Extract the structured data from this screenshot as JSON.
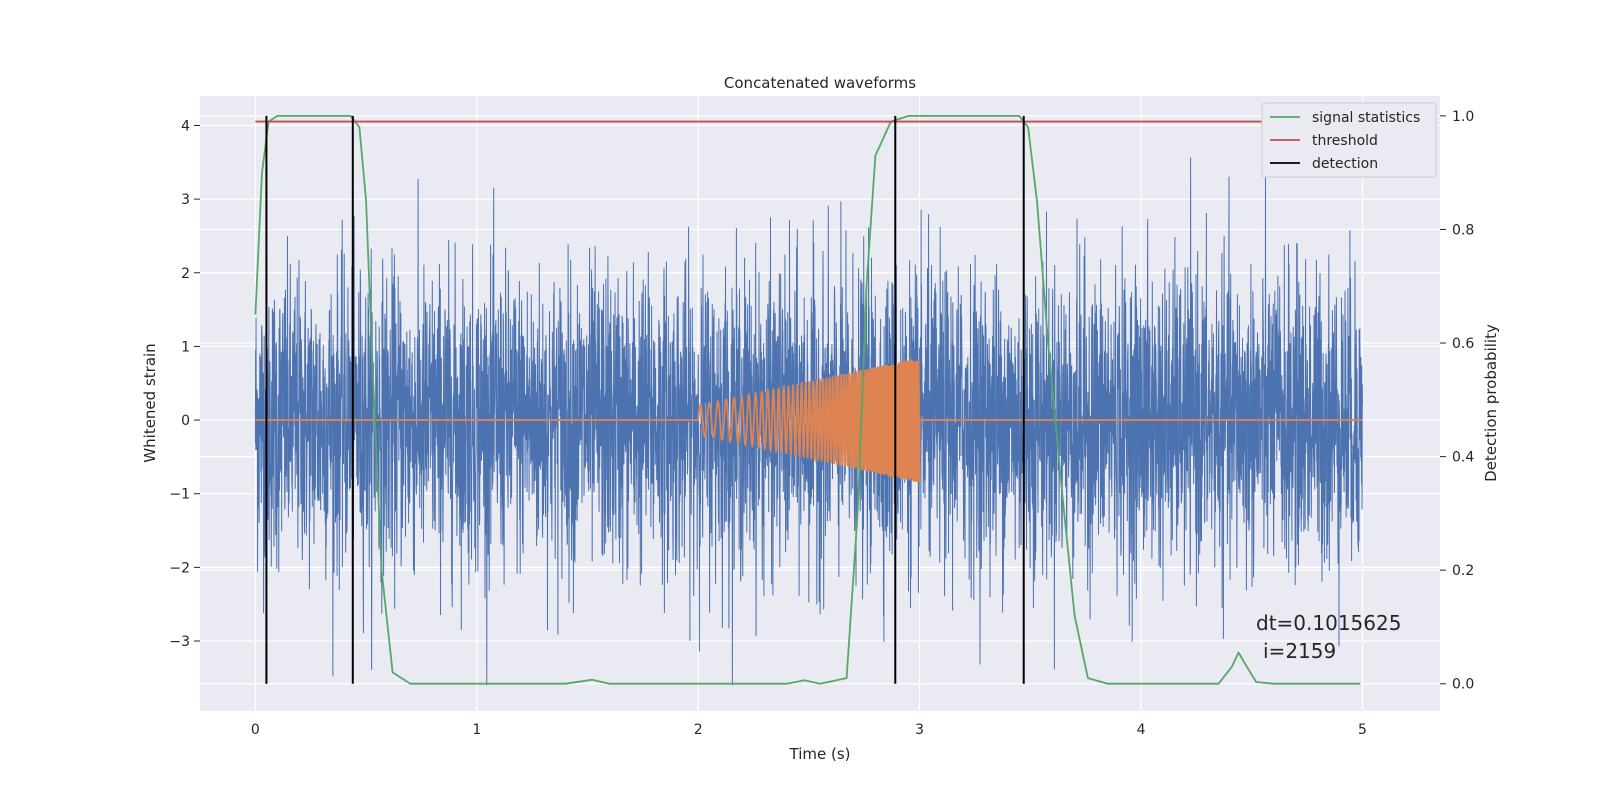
{
  "chart_data": {
    "type": "line",
    "title": "Concatenated waveforms",
    "xlabel": "Time (s)",
    "ylabel": "Whitened strain",
    "y2label": "Detection probability",
    "xlim": [
      -0.25,
      5.35
    ],
    "ylim": [
      -3.95,
      4.4
    ],
    "y2lim": [
      -0.048,
      1.035
    ],
    "x_ticks": [
      0,
      1,
      2,
      3,
      4,
      5
    ],
    "y_ticks": [
      -3,
      -2,
      -1,
      0,
      1,
      2,
      3,
      4
    ],
    "y2_ticks": [
      0.0,
      0.2,
      0.4,
      0.6,
      0.8,
      1.0
    ],
    "y2_tick_labels": [
      "0.0",
      "0.2",
      "0.4",
      "0.6",
      "0.8",
      "1.0"
    ],
    "grid": true,
    "legend_position": "top-right",
    "colors": {
      "strain": "#4c72b0",
      "injected": "#dd8452",
      "signal_statistics": "#55a868",
      "threshold": "#c44e52",
      "detection": "#000000",
      "background": "#eaeaf2",
      "grid": "#ffffff"
    },
    "series": [
      {
        "name": "",
        "key": "strain",
        "axis": "left",
        "description_x_range": [
          0,
          5
        ],
        "typical_amplitude": 1.0,
        "peak_range": [
          -3.6,
          3.7
        ]
      },
      {
        "name": "",
        "key": "injected",
        "axis": "left",
        "x_range": [
          2.0,
          3.0
        ],
        "start_amplitude": 0.2,
        "end_amplitude": 0.85
      },
      {
        "name": "signal statistics",
        "key": "signal_statistics",
        "axis": "right",
        "x": [
          0.0,
          0.03,
          0.06,
          0.1,
          0.43,
          0.47,
          0.5,
          0.53,
          0.57,
          0.62,
          0.7,
          1.4,
          1.52,
          1.6,
          2.4,
          2.48,
          2.55,
          2.67,
          2.72,
          2.76,
          2.8,
          2.87,
          2.95,
          3.45,
          3.49,
          3.53,
          3.58,
          3.64,
          3.7,
          3.76,
          3.85,
          4.35,
          4.41,
          4.44,
          4.47,
          4.52,
          4.6,
          4.99
        ],
        "y": [
          0.65,
          0.9,
          0.99,
          1.0,
          1.0,
          0.98,
          0.85,
          0.55,
          0.2,
          0.02,
          0.0,
          0.0,
          0.007,
          0.0,
          0.0,
          0.006,
          0.0,
          0.01,
          0.3,
          0.7,
          0.93,
          0.99,
          1.0,
          1.0,
          0.98,
          0.85,
          0.6,
          0.35,
          0.12,
          0.01,
          0.0,
          0.0,
          0.03,
          0.055,
          0.035,
          0.003,
          0.0,
          0.0
        ]
      },
      {
        "name": "threshold",
        "key": "threshold",
        "axis": "right",
        "x": [
          0.0,
          4.99
        ],
        "y": [
          0.99,
          0.99
        ]
      },
      {
        "name": "detection",
        "key": "detection",
        "axis": "right",
        "x": [
          0.05,
          0.44,
          2.89,
          3.47
        ],
        "y_range": [
          0.0,
          1.0
        ]
      }
    ],
    "annotations": [
      "dt=0.1015625",
      "i=2159"
    ]
  }
}
